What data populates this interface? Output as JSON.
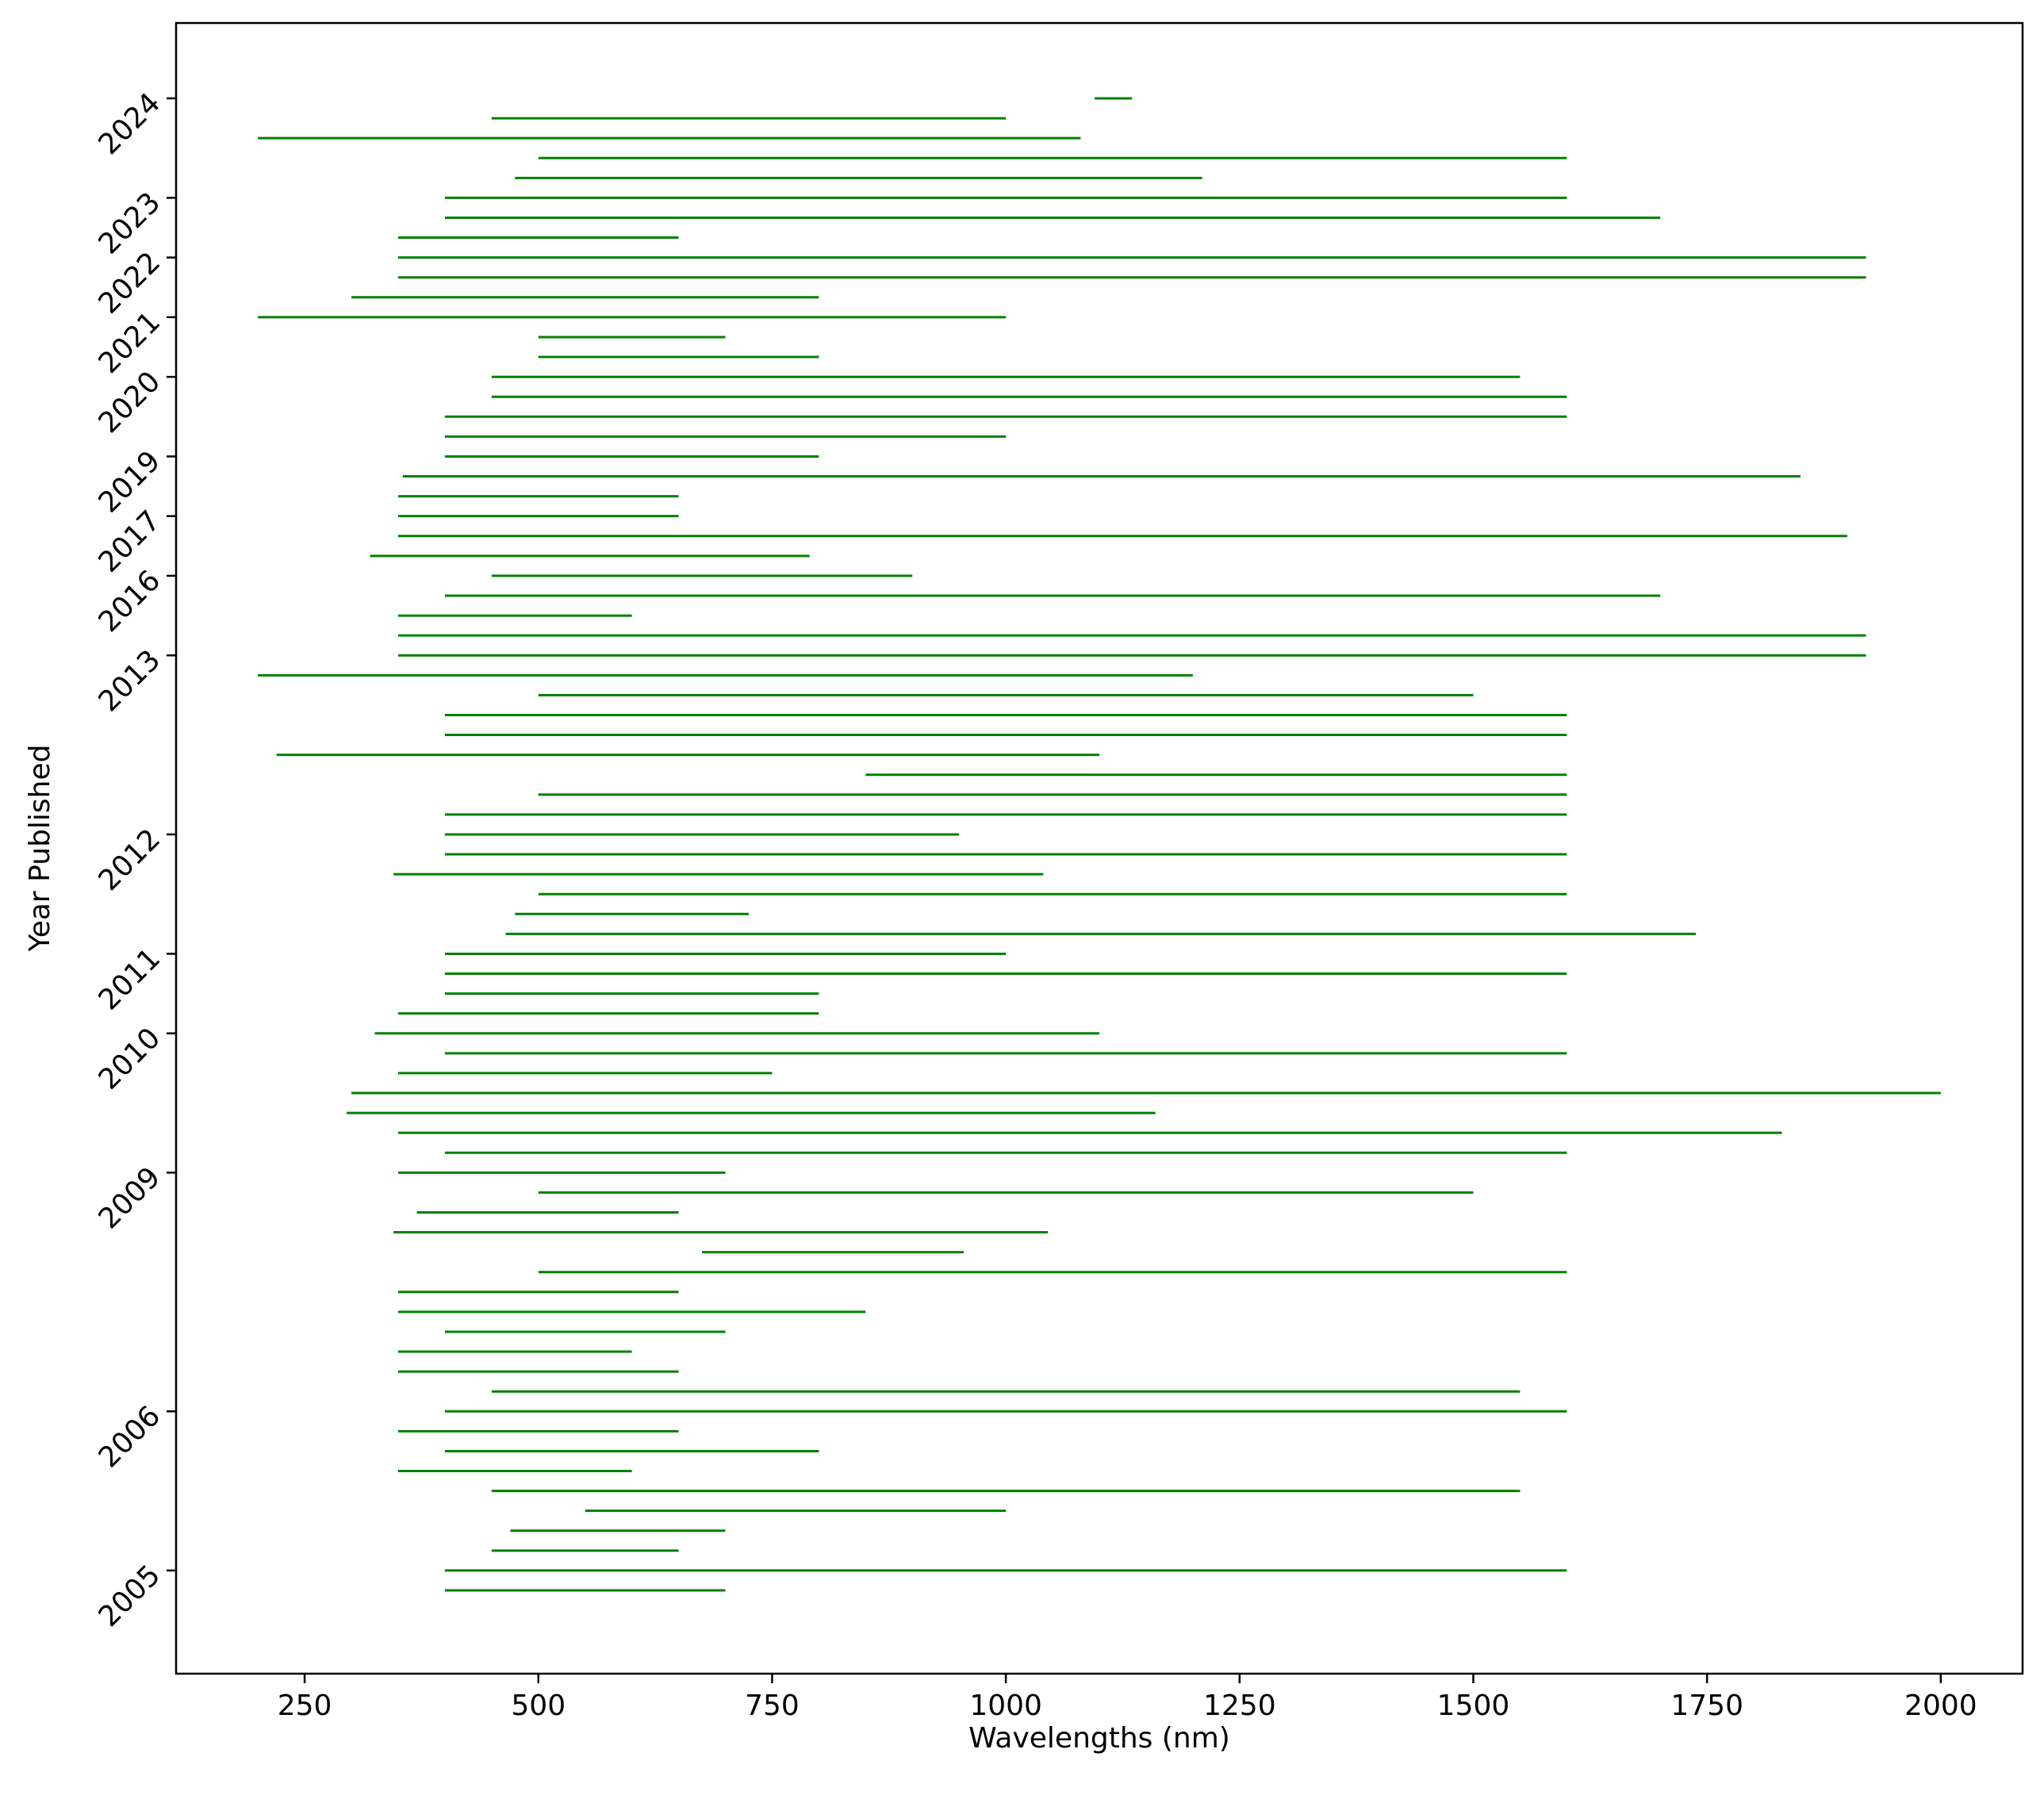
{
  "chart_data": {
    "type": "range-bar",
    "title": "",
    "xlabel": "Wavelengths (nm)",
    "ylabel": "Year Published",
    "xlim": [
      112.5,
      2087.5
    ],
    "x_ticks": [
      250,
      500,
      750,
      1000,
      1250,
      1500,
      1750,
      2000
    ],
    "line_color": "#008000",
    "grid": false,
    "legend": "none",
    "y_tick_labels": [
      {
        "label": "2024",
        "row": 0
      },
      {
        "label": "2023",
        "row": 5
      },
      {
        "label": "2022",
        "row": 8
      },
      {
        "label": "2021",
        "row": 11
      },
      {
        "label": "2020",
        "row": 14
      },
      {
        "label": "2019",
        "row": 18
      },
      {
        "label": "2017",
        "row": 21
      },
      {
        "label": "2016",
        "row": 24
      },
      {
        "label": "2013",
        "row": 28
      },
      {
        "label": "2012",
        "row": 37
      },
      {
        "label": "2011",
        "row": 43
      },
      {
        "label": "2010",
        "row": 47
      },
      {
        "label": "2009",
        "row": 54
      },
      {
        "label": "2006",
        "row": 66
      },
      {
        "label": "2005",
        "row": 74
      }
    ],
    "ranges": [
      [
        1095,
        1135
      ],
      [
        450,
        1000
      ],
      [
        200,
        1080
      ],
      [
        500,
        1600
      ],
      [
        475,
        1210
      ],
      [
        400,
        1600
      ],
      [
        400,
        1700
      ],
      [
        350,
        650
      ],
      [
        350,
        1920
      ],
      [
        350,
        1920
      ],
      [
        300,
        800
      ],
      [
        200,
        1000
      ],
      [
        500,
        700
      ],
      [
        500,
        800
      ],
      [
        450,
        1550
      ],
      [
        450,
        1600
      ],
      [
        400,
        1600
      ],
      [
        400,
        1000
      ],
      [
        400,
        800
      ],
      [
        355,
        1850
      ],
      [
        350,
        650
      ],
      [
        350,
        650
      ],
      [
        350,
        1900
      ],
      [
        320,
        790
      ],
      [
        450,
        900
      ],
      [
        400,
        1700
      ],
      [
        350,
        600
      ],
      [
        350,
        1920
      ],
      [
        350,
        1920
      ],
      [
        200,
        1200
      ],
      [
        500,
        1500
      ],
      [
        400,
        1600
      ],
      [
        400,
        1600
      ],
      [
        220,
        1100
      ],
      [
        850,
        1600
      ],
      [
        500,
        1600
      ],
      [
        400,
        1600
      ],
      [
        400,
        950
      ],
      [
        400,
        1600
      ],
      [
        345,
        1040
      ],
      [
        500,
        1600
      ],
      [
        475,
        725
      ],
      [
        465,
        1738
      ],
      [
        400,
        1000
      ],
      [
        400,
        1600
      ],
      [
        400,
        800
      ],
      [
        350,
        800
      ],
      [
        325,
        1100
      ],
      [
        400,
        1600
      ],
      [
        350,
        750
      ],
      [
        300,
        2000
      ],
      [
        295,
        1160
      ],
      [
        350,
        1830
      ],
      [
        400,
        1600
      ],
      [
        350,
        700
      ],
      [
        500,
        1500
      ],
      [
        370,
        650
      ],
      [
        345,
        1045
      ],
      [
        675,
        955
      ],
      [
        500,
        1600
      ],
      [
        350,
        650
      ],
      [
        350,
        850
      ],
      [
        400,
        700
      ],
      [
        350,
        600
      ],
      [
        350,
        650
      ],
      [
        450,
        1550
      ],
      [
        400,
        1600
      ],
      [
        350,
        650
      ],
      [
        400,
        800
      ],
      [
        350,
        600
      ],
      [
        450,
        1550
      ],
      [
        550,
        1000
      ],
      [
        470,
        700
      ],
      [
        450,
        650
      ],
      [
        400,
        1600
      ],
      [
        400,
        700
      ]
    ]
  }
}
